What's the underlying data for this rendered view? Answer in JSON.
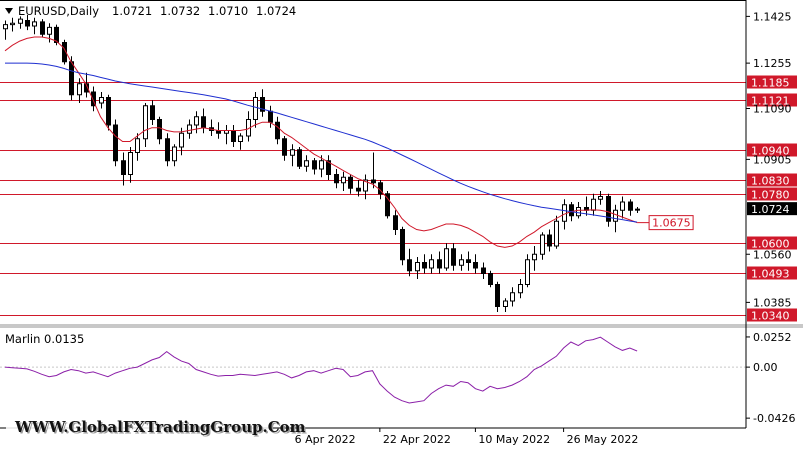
{
  "header": {
    "symbol": "EURUSD,Daily",
    "open": "1.0721",
    "high": "1.0732",
    "low": "1.0710",
    "close": "1.0724"
  },
  "indicator": {
    "name": "Marlin",
    "value": "0.0135"
  },
  "watermark": "WWW.GlobalFXTradingGroup.Com",
  "colors": {
    "ma_fast": "#d0182a",
    "ma_slow": "#1f2fd0",
    "levels": "#d0182a",
    "oscillator": "#8b1fa8",
    "candles": "#000000"
  },
  "chart_data": [
    {
      "type": "candlestick",
      "symbol": "EURUSD",
      "timeframe": "Daily",
      "x_tick_labels": [
        "6 Apr 2022",
        "22 Apr 2022",
        "10 May 2022",
        "26 May 2022"
      ],
      "y_tick_labels": [
        "1.1425",
        "1.1255",
        "1.1090",
        "1.0905",
        "1.0560",
        "1.0385"
      ],
      "ylim": [
        1.031,
        1.147
      ],
      "levels": [
        {
          "price": 1.1185,
          "label": "1.1185"
        },
        {
          "price": 1.1121,
          "label": "1.1121"
        },
        {
          "price": 1.094,
          "label": "1.0940"
        },
        {
          "price": 1.083,
          "label": "1.0830"
        },
        {
          "price": 1.078,
          "label": "1.0780"
        },
        {
          "price": 1.06,
          "label": "1.0600"
        },
        {
          "price": 1.0493,
          "label": "1.0493"
        },
        {
          "price": 1.034,
          "label": "1.0340"
        }
      ],
      "current_price": {
        "price": 1.0724,
        "label": "1.0724"
      },
      "ma_value_label": {
        "price": 1.0675,
        "label": "1.0675"
      },
      "candles": [
        [
          1.138,
          1.141,
          1.134,
          1.1395
        ],
        [
          1.1395,
          1.142,
          1.137,
          1.14
        ],
        [
          1.14,
          1.1425,
          1.138,
          1.1415
        ],
        [
          1.141,
          1.143,
          1.1375,
          1.139
        ],
        [
          1.139,
          1.142,
          1.136,
          1.1405
        ],
        [
          1.1405,
          1.1415,
          1.135,
          1.136
        ],
        [
          1.136,
          1.14,
          1.133,
          1.1385
        ],
        [
          1.1385,
          1.1395,
          1.132,
          1.133
        ],
        [
          1.133,
          1.134,
          1.125,
          1.126
        ],
        [
          1.126,
          1.128,
          1.112,
          1.114
        ],
        [
          1.114,
          1.12,
          1.111,
          1.118
        ],
        [
          1.118,
          1.122,
          1.113,
          1.115
        ],
        [
          1.115,
          1.117,
          1.108,
          1.11
        ],
        [
          1.111,
          1.115,
          1.109,
          1.113
        ],
        [
          1.113,
          1.114,
          1.101,
          1.103
        ],
        [
          1.103,
          1.105,
          1.088,
          1.09
        ],
        [
          1.09,
          1.093,
          1.081,
          1.085
        ],
        [
          1.085,
          1.095,
          1.082,
          1.093
        ],
        [
          1.093,
          1.1,
          1.09,
          1.098
        ],
        [
          1.098,
          1.111,
          1.095,
          1.11
        ],
        [
          1.11,
          1.112,
          1.103,
          1.105
        ],
        [
          1.105,
          1.106,
          1.096,
          1.098
        ],
        [
          1.098,
          1.1,
          1.088,
          1.09
        ],
        [
          1.09,
          1.096,
          1.088,
          1.095
        ],
        [
          1.095,
          1.102,
          1.092,
          1.1
        ],
        [
          1.1,
          1.105,
          1.098,
          1.103
        ],
        [
          1.103,
          1.108,
          1.1,
          1.106
        ],
        [
          1.106,
          1.109,
          1.1,
          1.102
        ],
        [
          1.102,
          1.105,
          1.099,
          1.101
        ],
        [
          1.101,
          1.104,
          1.098,
          1.1
        ],
        [
          1.1,
          1.103,
          1.096,
          1.101
        ],
        [
          1.101,
          1.103,
          1.095,
          1.097
        ],
        [
          1.097,
          1.1,
          1.094,
          1.099
        ],
        [
          1.099,
          1.108,
          1.097,
          1.105
        ],
        [
          1.105,
          1.115,
          1.102,
          1.113
        ],
        [
          1.113,
          1.116,
          1.106,
          1.108
        ],
        [
          1.108,
          1.11,
          1.102,
          1.104
        ],
        [
          1.104,
          1.106,
          1.096,
          1.098
        ],
        [
          1.098,
          1.099,
          1.09,
          1.092
        ],
        [
          1.092,
          1.096,
          1.088,
          1.094
        ],
        [
          1.094,
          1.095,
          1.087,
          1.088
        ],
        [
          1.088,
          1.092,
          1.086,
          1.09
        ],
        [
          1.09,
          1.091,
          1.085,
          1.087
        ],
        [
          1.087,
          1.092,
          1.084,
          1.09
        ],
        [
          1.09,
          1.092,
          1.083,
          1.085
        ],
        [
          1.085,
          1.087,
          1.08,
          1.082
        ],
        [
          1.082,
          1.086,
          1.079,
          1.084
        ],
        [
          1.084,
          1.085,
          1.078,
          1.08
        ],
        [
          1.08,
          1.083,
          1.077,
          1.079
        ],
        [
          1.079,
          1.085,
          1.076,
          1.083
        ],
        [
          1.083,
          1.093,
          1.08,
          1.082
        ],
        [
          1.082,
          1.083,
          1.076,
          1.078
        ],
        [
          1.078,
          1.079,
          1.069,
          1.07
        ],
        [
          1.07,
          1.072,
          1.063,
          1.065
        ],
        [
          1.065,
          1.066,
          1.052,
          1.054
        ],
        [
          1.054,
          1.058,
          1.048,
          1.05
        ],
        [
          1.05,
          1.055,
          1.047,
          1.053
        ],
        [
          1.053,
          1.056,
          1.049,
          1.051
        ],
        [
          1.051,
          1.056,
          1.049,
          1.054
        ],
        [
          1.054,
          1.057,
          1.049,
          1.051
        ],
        [
          1.051,
          1.06,
          1.05,
          1.058
        ],
        [
          1.058,
          1.06,
          1.05,
          1.052
        ],
        [
          1.052,
          1.056,
          1.05,
          1.054
        ],
        [
          1.054,
          1.057,
          1.05,
          1.053
        ],
        [
          1.053,
          1.056,
          1.049,
          1.051
        ],
        [
          1.051,
          1.053,
          1.047,
          1.049
        ],
        [
          1.049,
          1.05,
          1.044,
          1.045
        ],
        [
          1.045,
          1.046,
          1.035,
          1.037
        ],
        [
          1.037,
          1.04,
          1.035,
          1.039
        ],
        [
          1.039,
          1.044,
          1.037,
          1.042
        ],
        [
          1.042,
          1.047,
          1.04,
          1.045
        ],
        [
          1.045,
          1.056,
          1.044,
          1.054
        ],
        [
          1.054,
          1.059,
          1.05,
          1.056
        ],
        [
          1.056,
          1.064,
          1.054,
          1.063
        ],
        [
          1.063,
          1.065,
          1.057,
          1.059
        ],
        [
          1.059,
          1.07,
          1.058,
          1.068
        ],
        [
          1.068,
          1.076,
          1.065,
          1.074
        ],
        [
          1.074,
          1.075,
          1.068,
          1.07
        ],
        [
          1.07,
          1.075,
          1.069,
          1.073
        ],
        [
          1.073,
          1.077,
          1.07,
          1.072
        ],
        [
          1.072,
          1.078,
          1.07,
          1.076
        ],
        [
          1.076,
          1.079,
          1.074,
          1.077
        ],
        [
          1.077,
          1.078,
          1.066,
          1.068
        ],
        [
          1.068,
          1.074,
          1.064,
          1.072
        ],
        [
          1.072,
          1.077,
          1.069,
          1.075
        ],
        [
          1.075,
          1.076,
          1.07,
          1.072
        ],
        [
          1.0721,
          1.0732,
          1.071,
          1.0724
        ]
      ],
      "ma_fast": [
        1.13,
        1.132,
        1.1335,
        1.1345,
        1.135,
        1.135,
        1.1345,
        1.1335,
        1.131,
        1.126,
        1.122,
        1.118,
        1.112,
        1.106,
        1.102,
        1.099,
        1.097,
        1.097,
        1.099,
        1.101,
        1.102,
        1.102,
        1.101,
        1.1005,
        1.1005,
        1.101,
        1.1015,
        1.102,
        1.1015,
        1.101,
        1.101,
        1.101,
        1.101,
        1.1015,
        1.103,
        1.104,
        1.104,
        1.1025,
        1.1,
        1.0985,
        1.0965,
        1.0945,
        1.0925,
        1.091,
        1.0895,
        1.088,
        1.0865,
        1.085,
        1.0835,
        1.0825,
        1.0815,
        1.0795,
        1.0765,
        1.073,
        1.069,
        1.0665,
        1.065,
        1.0645,
        1.065,
        1.066,
        1.067,
        1.067,
        1.0665,
        1.0655,
        1.064,
        1.0625,
        1.0605,
        1.059,
        1.0585,
        1.059,
        1.0605,
        1.0625,
        1.064,
        1.066,
        1.0675,
        1.069,
        1.0705,
        1.0715,
        1.072,
        1.072,
        1.0722,
        1.072,
        1.0715,
        1.0705,
        1.0695,
        1.0685,
        1.0675
      ],
      "ma_slow": [
        1.1255,
        1.1255,
        1.1255,
        1.1255,
        1.1254,
        1.1252,
        1.1248,
        1.1243,
        1.1236,
        1.1227,
        1.122,
        1.1215,
        1.121,
        1.1203,
        1.1197,
        1.119,
        1.1185,
        1.118,
        1.1176,
        1.1172,
        1.1168,
        1.1164,
        1.116,
        1.1156,
        1.1152,
        1.1148,
        1.1144,
        1.114,
        1.1135,
        1.113,
        1.1125,
        1.1118,
        1.111,
        1.1102,
        1.1095,
        1.1088,
        1.1081,
        1.1074,
        1.1066,
        1.1058,
        1.105,
        1.1042,
        1.1034,
        1.1026,
        1.1018,
        1.101,
        1.1002,
        1.0994,
        1.0986,
        1.0978,
        1.0968,
        1.0957,
        1.0946,
        1.0934,
        1.0921,
        1.0908,
        1.0895,
        1.0882,
        1.0869,
        1.0856,
        1.0843,
        1.083,
        1.0818,
        1.0807,
        1.0797,
        1.0787,
        1.0778,
        1.077,
        1.0762,
        1.0755,
        1.0748,
        1.0742,
        1.0736,
        1.0731,
        1.0727,
        1.0723,
        1.0719,
        1.0715,
        1.0711,
        1.0707,
        1.0703,
        1.0699,
        1.0695,
        1.069,
        1.0686,
        1.0681,
        1.0677
      ]
    },
    {
      "type": "line",
      "title": "Marlin 0.0135",
      "y_tick_labels": [
        "0.0252",
        "0.00",
        "-0.0426"
      ],
      "ylim": [
        -0.05,
        0.031
      ],
      "zero_line": 0.0,
      "values": [
        0.0,
        -0.0005,
        -0.001,
        -0.0015,
        -0.0035,
        -0.006,
        -0.008,
        -0.007,
        -0.004,
        -0.002,
        -0.003,
        -0.005,
        -0.004,
        -0.006,
        -0.008,
        -0.005,
        -0.003,
        -0.001,
        0.0,
        0.003,
        0.006,
        0.008,
        0.013,
        0.0085,
        0.005,
        0.003,
        -0.002,
        -0.004,
        -0.006,
        -0.0075,
        -0.007,
        -0.007,
        -0.006,
        -0.0065,
        -0.007,
        -0.006,
        -0.005,
        -0.004,
        -0.006,
        -0.009,
        -0.007,
        -0.004,
        -0.003,
        -0.005,
        -0.003,
        -0.001,
        -0.002,
        -0.008,
        -0.007,
        -0.004,
        -0.003,
        -0.014,
        -0.02,
        -0.025,
        -0.028,
        -0.03,
        -0.029,
        -0.028,
        -0.022,
        -0.018,
        -0.015,
        -0.016,
        -0.012,
        -0.013,
        -0.018,
        -0.02,
        -0.016,
        -0.018,
        -0.017,
        -0.015,
        -0.012,
        -0.008,
        -0.002,
        0.001,
        0.005,
        0.009,
        0.016,
        0.021,
        0.018,
        0.022,
        0.023,
        0.025,
        0.021,
        0.017,
        0.014,
        0.016,
        0.0135
      ]
    }
  ]
}
